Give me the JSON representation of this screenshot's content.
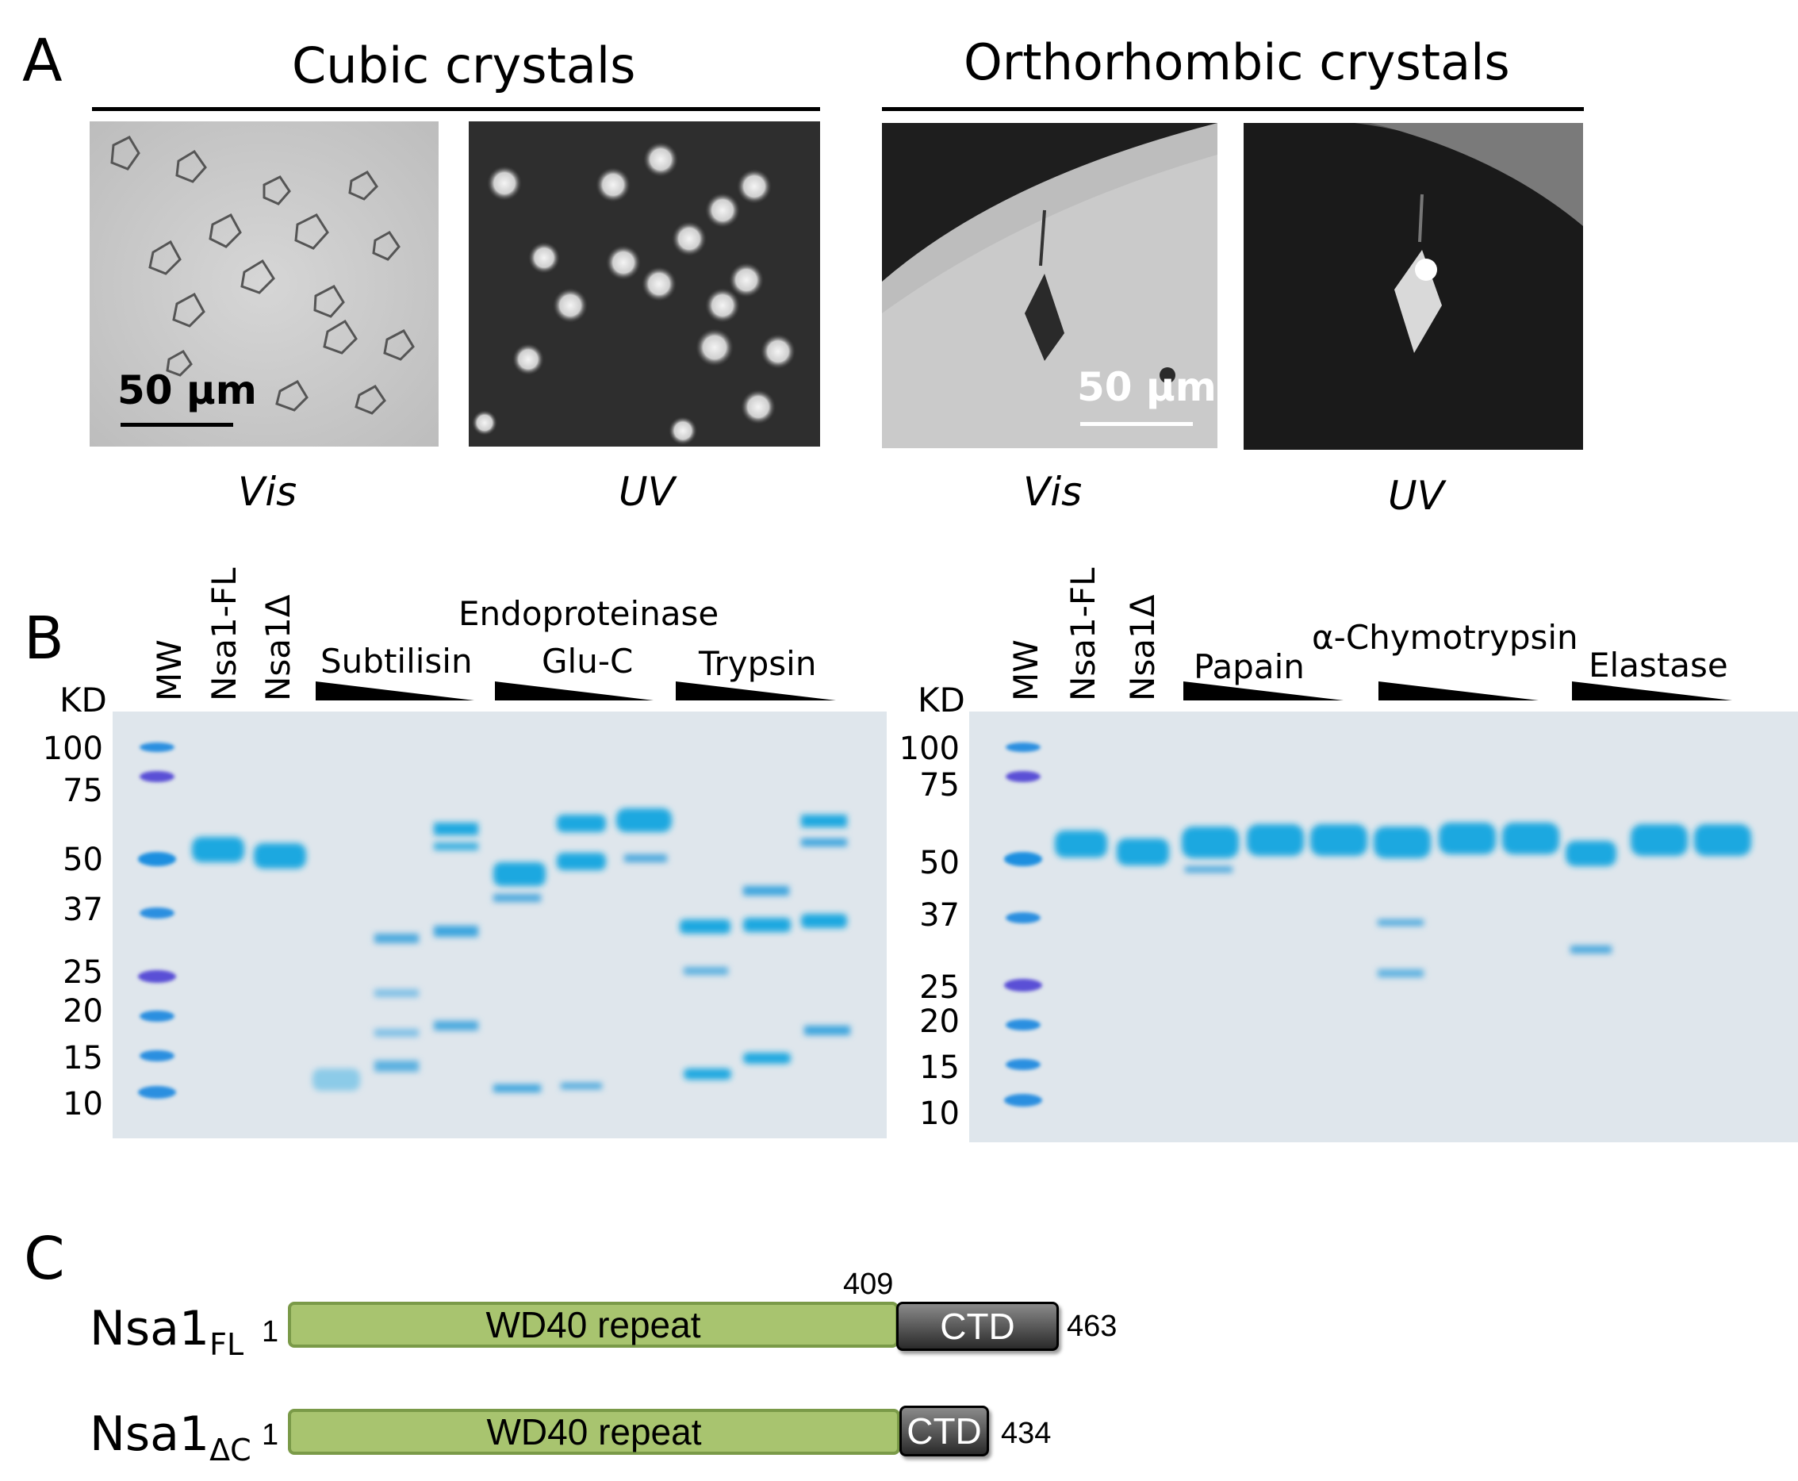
{
  "panelA": {
    "letter": "A",
    "cubic_title": "Cubic crystals",
    "ortho_title": "Orthorhombic crystals",
    "images": [
      {
        "caption": "Vis",
        "scale_bar": "50 µm"
      },
      {
        "caption": "UV"
      },
      {
        "caption": "Vis",
        "scale_bar": "50 µm"
      },
      {
        "caption": "UV"
      }
    ]
  },
  "panelB": {
    "letter": "B",
    "left_gel": {
      "unit": "KD",
      "markers": [
        "100",
        "75",
        "50",
        "37",
        "25",
        "20",
        "15",
        "10"
      ],
      "lane_labels": [
        "MW",
        "Nsa1-FL",
        "Nsa1Δ"
      ],
      "group_header": "Endoproteinase",
      "enzymes": [
        "Subtilisin",
        "Glu-C",
        "Trypsin"
      ]
    },
    "right_gel": {
      "unit": "KD",
      "markers": [
        "100",
        "75",
        "50",
        "37",
        "25",
        "20",
        "15",
        "10"
      ],
      "lane_labels": [
        "MW",
        "Nsa1-FL",
        "Nsa1Δ"
      ],
      "enzymes": [
        "Papain",
        "α-Chymotrypsin",
        "Elastase"
      ]
    }
  },
  "panelC": {
    "letter": "C",
    "constructs": [
      {
        "name": "Nsa1",
        "sub": "FL",
        "start": "1",
        "domain": "WD40 repeat",
        "boundary": "409",
        "ctd": "CTD",
        "end": "463"
      },
      {
        "name": "Nsa1",
        "sub": "ΔC",
        "start": "1",
        "domain": "WD40 repeat",
        "ctd": "CTD",
        "end": "434"
      }
    ]
  },
  "colors": {
    "wd40_fill": "#a8c46f",
    "wd40_border": "#7a9a48",
    "ctd_fill": "#4a4a4a",
    "gel_background": "#dfe6ec",
    "protein_band": "#1aa8e0",
    "marker_blue": "#2b8fe0",
    "marker_purple": "#5a4fd6"
  }
}
